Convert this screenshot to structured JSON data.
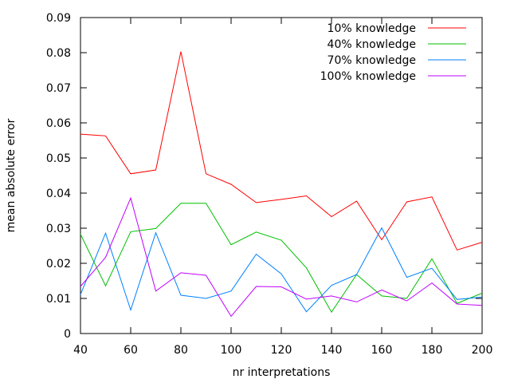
{
  "chart_data": {
    "type": "line",
    "xlabel": "nr interpretations",
    "ylabel": "mean absolute error",
    "xlim": [
      40,
      200
    ],
    "ylim": [
      0,
      0.09
    ],
    "grid": false,
    "legend_position": "top-right",
    "x": [
      40,
      50,
      60,
      70,
      80,
      90,
      100,
      110,
      120,
      130,
      140,
      150,
      160,
      170,
      180,
      190,
      200
    ],
    "x_ticks": [
      40,
      60,
      80,
      100,
      120,
      140,
      160,
      180,
      200
    ],
    "x_tick_labels": [
      "40",
      "60",
      "80",
      "100",
      "120",
      "140",
      "160",
      "180",
      "200"
    ],
    "y_ticks": [
      0,
      0.01,
      0.02,
      0.03,
      0.04,
      0.05,
      0.06,
      0.07,
      0.08,
      0.09
    ],
    "y_tick_labels": [
      "0",
      "0.01",
      "0.02",
      "0.03",
      "0.04",
      "0.05",
      "0.06",
      "0.07",
      "0.08",
      "0.09"
    ],
    "series": [
      {
        "name": "10% knowledge",
        "color": "#ff0000",
        "values": [
          0.0568,
          0.0563,
          0.0455,
          0.0466,
          0.0803,
          0.0455,
          0.0425,
          0.0373,
          0.0382,
          0.0392,
          0.0333,
          0.0377,
          0.0267,
          0.0375,
          0.0389,
          0.0238,
          0.026
        ]
      },
      {
        "name": "40% knowledge",
        "color": "#00c000",
        "values": [
          0.0283,
          0.0136,
          0.029,
          0.0299,
          0.0371,
          0.0371,
          0.0253,
          0.0289,
          0.0266,
          0.0187,
          0.0061,
          0.0168,
          0.0107,
          0.01,
          0.0213,
          0.0086,
          0.0115
        ]
      },
      {
        "name": "70% knowledge",
        "color": "#0080ff",
        "values": [
          0.0111,
          0.0286,
          0.0067,
          0.0287,
          0.0109,
          0.01,
          0.0121,
          0.0226,
          0.017,
          0.0062,
          0.0137,
          0.0168,
          0.0301,
          0.016,
          0.0186,
          0.0097,
          0.0104
        ]
      },
      {
        "name": "100% knowledge",
        "color": "#c000ff",
        "values": [
          0.0134,
          0.0217,
          0.0386,
          0.0121,
          0.0173,
          0.0166,
          0.0049,
          0.0134,
          0.0133,
          0.0098,
          0.0107,
          0.009,
          0.0124,
          0.0093,
          0.0144,
          0.0084,
          0.008
        ]
      }
    ]
  }
}
